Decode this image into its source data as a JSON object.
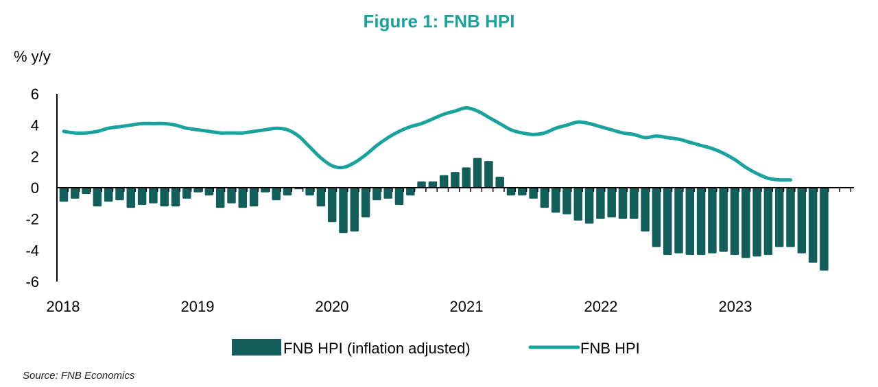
{
  "chart_data": {
    "type": "bar+line",
    "title": "Figure 1: FNB HPI",
    "ylabel": "% y/y",
    "ylim": [
      -6,
      6
    ],
    "yticks": [
      "6",
      "4",
      "2",
      "0",
      "-2",
      "-4",
      "-6"
    ],
    "xticks": [
      "2018",
      "2019",
      "2020",
      "2021",
      "2022",
      "2023"
    ],
    "x_start": "2018-01",
    "series": [
      {
        "name": "FNB HPI (inflation adjusted)",
        "type": "bar",
        "color": "#125e5b",
        "values": [
          -0.9,
          -0.7,
          -0.4,
          -1.2,
          -0.9,
          -0.8,
          -1.3,
          -1.1,
          -1.0,
          -1.2,
          -1.2,
          -0.7,
          -0.3,
          -0.5,
          -1.3,
          -1.0,
          -1.3,
          -1.2,
          -0.3,
          -0.8,
          -0.5,
          -0.1,
          -0.5,
          -1.2,
          -2.2,
          -2.9,
          -2.8,
          -1.9,
          -0.8,
          -0.7,
          -1.1,
          -0.5,
          0.4,
          0.4,
          0.8,
          1.0,
          1.3,
          1.9,
          1.7,
          0.7,
          -0.5,
          -0.5,
          -0.7,
          -1.3,
          -1.6,
          -1.7,
          -2.1,
          -2.3,
          -2.0,
          -1.9,
          -2.0,
          -2.0,
          -2.8,
          -3.8,
          -4.3,
          -4.2,
          -4.3,
          -4.3,
          -4.2,
          -4.1,
          -4.3,
          -4.5,
          -4.4,
          -4.3,
          -3.8,
          -3.8,
          -4.2,
          -4.8,
          -5.3
        ]
      },
      {
        "name": "FNB HPI",
        "type": "line",
        "color": "#1aa39c",
        "values": [
          3.6,
          3.5,
          3.5,
          3.6,
          3.8,
          3.9,
          4.0,
          4.1,
          4.1,
          4.1,
          4.0,
          3.8,
          3.7,
          3.6,
          3.5,
          3.5,
          3.5,
          3.6,
          3.7,
          3.8,
          3.7,
          3.3,
          2.6,
          1.9,
          1.4,
          1.3,
          1.6,
          2.1,
          2.7,
          3.2,
          3.6,
          3.9,
          4.1,
          4.4,
          4.7,
          4.9,
          5.1,
          4.9,
          4.5,
          4.1,
          3.7,
          3.5,
          3.4,
          3.5,
          3.8,
          4.0,
          4.2,
          4.1,
          3.9,
          3.7,
          3.5,
          3.4,
          3.2,
          3.3,
          3.2,
          3.1,
          2.9,
          2.7,
          2.5,
          2.2,
          1.8,
          1.3,
          0.9,
          0.6,
          0.5,
          0.5
        ]
      }
    ],
    "grid": false,
    "legend": "bottom",
    "source": "Source: FNB Economics"
  },
  "colors": {
    "title": "#1aa39c",
    "bar": "#125e5b",
    "line": "#1aa39c",
    "axis": "#000000"
  }
}
